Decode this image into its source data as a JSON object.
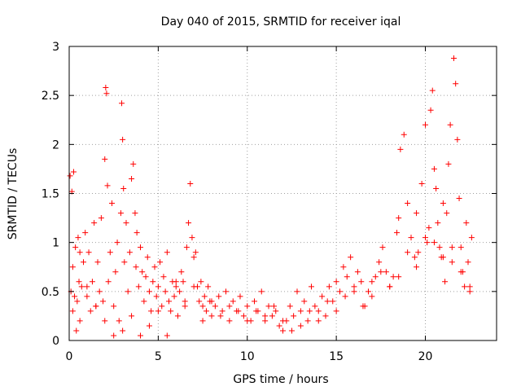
{
  "chart_data": {
    "type": "scatter",
    "title": "Day 040 of 2015, SRMTID for receiver iqal",
    "xlabel": "GPS time / hours",
    "ylabel": "SRMTID / TECUs",
    "xlim": [
      0,
      24
    ],
    "ylim": [
      0,
      3
    ],
    "x_ticks": [
      0,
      5,
      10,
      15,
      20
    ],
    "y_ticks": [
      0,
      0.5,
      1,
      1.5,
      2,
      2.5,
      3
    ],
    "x_tick_labels": [
      "0",
      "5",
      "10",
      "15",
      "20"
    ],
    "y_tick_labels": [
      "0",
      "0.5",
      "1",
      "1.5",
      "2",
      "2.5",
      "3"
    ],
    "grid": true,
    "marker": "+",
    "series": [
      {
        "name": "SRMTID",
        "color": "#ff0000",
        "x": [
          0.05,
          0.1,
          0.15,
          0.2,
          0.25,
          0.3,
          0.35,
          0.4,
          0.45,
          0.5,
          0.55,
          0.6,
          0.7,
          0.8,
          0.9,
          1.0,
          1.1,
          1.2,
          1.3,
          1.4,
          1.5,
          1.6,
          1.7,
          1.8,
          1.9,
          2.0,
          2.05,
          2.1,
          2.15,
          2.2,
          2.3,
          2.4,
          2.5,
          2.6,
          2.7,
          2.8,
          2.9,
          2.95,
          3.0,
          3.05,
          3.1,
          3.2,
          3.3,
          3.4,
          3.5,
          3.6,
          3.7,
          3.75,
          3.8,
          3.9,
          4.0,
          4.1,
          4.2,
          4.3,
          4.4,
          4.5,
          4.6,
          4.7,
          4.8,
          4.9,
          5.0,
          5.1,
          5.2,
          5.3,
          5.4,
          5.5,
          5.6,
          5.7,
          5.8,
          5.9,
          6.0,
          6.1,
          6.2,
          6.3,
          6.4,
          6.5,
          6.6,
          6.7,
          6.8,
          6.9,
          7.0,
          7.1,
          7.2,
          7.3,
          7.4,
          7.5,
          7.6,
          7.7,
          7.8,
          7.9,
          8.0,
          8.2,
          8.4,
          8.6,
          8.8,
          9.0,
          9.2,
          9.4,
          9.6,
          9.8,
          10.0,
          10.2,
          10.4,
          10.6,
          10.8,
          11.0,
          11.2,
          11.4,
          11.6,
          11.8,
          12.0,
          12.2,
          12.4,
          12.6,
          12.8,
          13.0,
          13.2,
          13.4,
          13.6,
          13.8,
          14.0,
          14.2,
          14.4,
          14.6,
          14.8,
          15.0,
          15.2,
          15.4,
          15.6,
          15.8,
          16.0,
          16.2,
          16.4,
          16.6,
          16.8,
          17.0,
          17.2,
          17.4,
          17.6,
          17.8,
          18.0,
          18.2,
          18.4,
          18.5,
          18.6,
          18.8,
          19.0,
          19.2,
          19.4,
          19.5,
          19.6,
          19.8,
          20.0,
          20.1,
          20.2,
          20.3,
          20.4,
          20.5,
          20.6,
          20.7,
          20.8,
          20.9,
          21.0,
          21.1,
          21.2,
          21.3,
          21.4,
          21.5,
          21.6,
          21.7,
          21.8,
          21.9,
          22.0,
          22.1,
          22.2,
          22.3,
          22.4,
          22.5,
          22.6,
          0.2,
          0.6,
          1.0,
          1.5,
          2.0,
          2.5,
          3.0,
          3.5,
          4.0,
          4.5,
          5.0,
          5.5,
          6.0,
          6.5,
          7.0,
          7.5,
          8.0,
          8.5,
          9.0,
          9.5,
          10.0,
          10.5,
          11.0,
          11.5,
          12.0,
          12.5,
          13.0,
          13.5,
          14.0,
          14.5,
          15.0,
          15.5,
          16.0,
          16.5,
          17.0,
          17.5,
          18.0,
          18.5,
          19.0,
          19.5,
          20.0,
          20.5,
          21.0,
          21.5,
          22.0,
          22.5
        ],
        "y": [
          1.68,
          0.5,
          1.52,
          0.3,
          1.72,
          0.45,
          0.95,
          0.1,
          0.4,
          1.05,
          0.6,
          0.2,
          0.55,
          0.8,
          1.1,
          0.45,
          0.9,
          0.3,
          0.6,
          1.2,
          0.35,
          0.8,
          0.5,
          1.25,
          0.4,
          1.85,
          2.58,
          2.52,
          1.58,
          0.6,
          0.9,
          1.4,
          0.35,
          0.7,
          1.0,
          0.2,
          1.3,
          2.42,
          2.05,
          1.55,
          0.8,
          1.2,
          0.5,
          0.9,
          1.65,
          1.8,
          1.3,
          0.75,
          1.1,
          0.55,
          0.95,
          0.7,
          0.4,
          0.65,
          0.85,
          0.5,
          0.3,
          0.6,
          0.75,
          0.45,
          0.55,
          0.8,
          0.35,
          0.65,
          0.5,
          0.9,
          0.4,
          0.3,
          0.6,
          0.45,
          0.55,
          0.25,
          0.5,
          0.7,
          0.6,
          0.4,
          0.95,
          1.2,
          1.6,
          1.05,
          0.85,
          0.9,
          0.55,
          0.4,
          0.6,
          0.35,
          0.45,
          0.3,
          0.55,
          0.4,
          0.25,
          0.35,
          0.45,
          0.3,
          0.5,
          0.2,
          0.4,
          0.3,
          0.45,
          0.25,
          0.35,
          0.2,
          0.4,
          0.3,
          0.5,
          0.2,
          0.35,
          0.25,
          0.3,
          0.15,
          0.1,
          0.2,
          0.35,
          0.25,
          0.5,
          0.3,
          0.4,
          0.2,
          0.55,
          0.35,
          0.3,
          0.45,
          0.25,
          0.55,
          0.4,
          0.6,
          0.5,
          0.75,
          0.65,
          0.85,
          0.55,
          0.7,
          0.6,
          0.35,
          0.5,
          0.45,
          0.65,
          0.8,
          0.95,
          0.7,
          0.55,
          0.65,
          1.1,
          1.25,
          1.95,
          2.1,
          1.4,
          1.05,
          0.85,
          1.3,
          0.9,
          1.6,
          2.2,
          1.0,
          1.15,
          2.35,
          2.55,
          1.75,
          1.55,
          1.2,
          0.95,
          0.85,
          1.4,
          0.6,
          1.3,
          1.8,
          2.2,
          0.8,
          2.88,
          2.62,
          2.05,
          1.45,
          0.95,
          0.7,
          0.55,
          1.2,
          0.8,
          0.5,
          1.05,
          0.75,
          0.9,
          0.55,
          0.35,
          0.2,
          0.05,
          0.1,
          0.25,
          0.05,
          0.15,
          0.3,
          0.05,
          0.6,
          0.35,
          0.55,
          0.2,
          0.4,
          0.25,
          0.35,
          0.3,
          0.2,
          0.3,
          0.25,
          0.35,
          0.2,
          0.1,
          0.15,
          0.3,
          0.2,
          0.4,
          0.3,
          0.45,
          0.5,
          0.35,
          0.6,
          0.7,
          0.55,
          0.65,
          0.9,
          0.75,
          1.05,
          1.0,
          0.85,
          0.95,
          0.7,
          0.55
        ]
      }
    ]
  }
}
